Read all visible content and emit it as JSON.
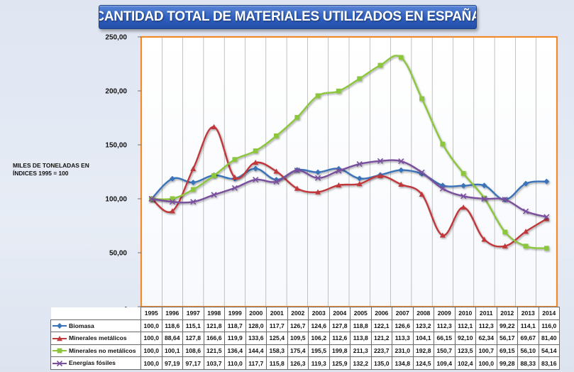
{
  "title": "CANTIDAD TOTAL DE MATERIALES UTILIZADOS EN ESPAÑA",
  "ylabel_line1": "MILES DE TONELADAS EN",
  "ylabel_line2": "ÍNDICES 1995 = 100",
  "chart_data": {
    "type": "line",
    "x": [
      1995,
      1996,
      1997,
      1998,
      1999,
      2000,
      2001,
      2002,
      2003,
      2004,
      2005,
      2006,
      2007,
      2008,
      2009,
      2010,
      2011,
      2012,
      2013,
      2014
    ],
    "ylim": [
      0,
      250
    ],
    "yticks": [
      0,
      50,
      100,
      150,
      200,
      250
    ],
    "ytick_labels": [
      "-",
      "50,00",
      "100,00",
      "150,00",
      "200,00",
      "250,00"
    ],
    "grid": "vertical",
    "series": [
      {
        "name": "Biomasa",
        "color": "#3b73b9",
        "marker": "diamond",
        "values": [
          100.0,
          118.6,
          115.1,
          121.8,
          118.7,
          128.0,
          117.7,
          126.7,
          124.6,
          127.8,
          118.8,
          122.1,
          126.6,
          123.2,
          112.3,
          112.1,
          112.3,
          99.22,
          114.1,
          116.0
        ],
        "labels": [
          "100,0",
          "118,6",
          "115,1",
          "121,8",
          "118,7",
          "128,0",
          "117,7",
          "126,7",
          "124,6",
          "127,8",
          "118,8",
          "122,1",
          "126,6",
          "123,2",
          "112,3",
          "112,1",
          "112,3",
          "99,22",
          "114,1",
          "116,0"
        ]
      },
      {
        "name": "Minerales metálicos",
        "color": "#c0393b",
        "marker": "triangle",
        "values": [
          100.0,
          88.64,
          127.8,
          166.6,
          119.9,
          133.6,
          125.4,
          109.5,
          106.2,
          112.6,
          113.8,
          121.2,
          113.3,
          104.1,
          66.15,
          92.1,
          62.34,
          56.17,
          69.67,
          81.4
        ],
        "labels": [
          "100,0",
          "88,64",
          "127,8",
          "166,6",
          "119,9",
          "133,6",
          "125,4",
          "109,5",
          "106,2",
          "112,6",
          "113,8",
          "121,2",
          "113,3",
          "104,1",
          "66,15",
          "92,10",
          "62,34",
          "56,17",
          "69,67",
          "81,40"
        ]
      },
      {
        "name": "Minerales no metálicos",
        "color": "#8cc63e",
        "marker": "square",
        "values": [
          100.0,
          100.1,
          108.6,
          121.5,
          136.4,
          144.4,
          158.3,
          175.4,
          195.5,
          199.8,
          211.3,
          223.7,
          231.0,
          192.8,
          150.7,
          123.5,
          100.7,
          69.15,
          56.1,
          54.14
        ],
        "labels": [
          "100,0",
          "100,1",
          "108,6",
          "121,5",
          "136,4",
          "144,4",
          "158,3",
          "175,4",
          "195,5",
          "199,8",
          "211,3",
          "223,7",
          "231,0",
          "192,8",
          "150,7",
          "123,5",
          "100,7",
          "69,15",
          "56,10",
          "54,14"
        ]
      },
      {
        "name": "Energías fósiles",
        "color": "#7a4f9e",
        "marker": "x",
        "values": [
          100.0,
          97.19,
          97.17,
          103.7,
          110.0,
          117.7,
          115.8,
          126.3,
          119.3,
          125.9,
          132.2,
          135.0,
          134.8,
          124.5,
          109.4,
          102.4,
          100.0,
          99.28,
          88.33,
          83.16
        ],
        "labels": [
          "100,0",
          "97,19",
          "97,17",
          "103,7",
          "110,0",
          "117,7",
          "115,8",
          "126,3",
          "119,3",
          "125,9",
          "132,2",
          "135,0",
          "134,8",
          "124,5",
          "109,4",
          "102,4",
          "100,0",
          "99,28",
          "88,33",
          "83,16"
        ]
      }
    ]
  }
}
